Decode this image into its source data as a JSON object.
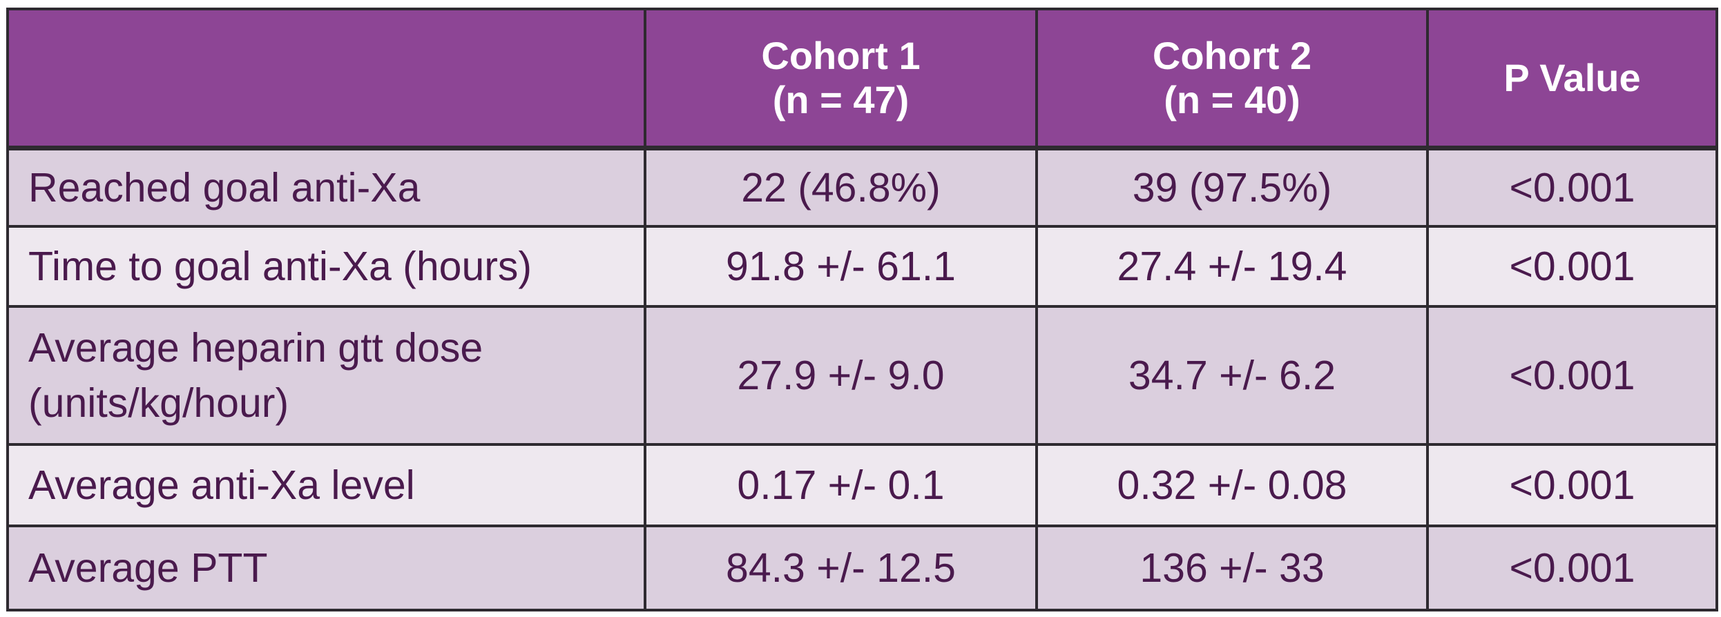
{
  "header": {
    "col0": "",
    "col1": [
      "Cohort 1",
      "(n = 47)"
    ],
    "col2": [
      "Cohort 2",
      "(n = 40)"
    ],
    "col3": "P Value"
  },
  "rows": [
    {
      "label": [
        "Reached goal anti-Xa"
      ],
      "cohort1": "22 (46.8%)",
      "cohort2": "39 (97.5%)",
      "p": "<0.001"
    },
    {
      "label": [
        "Time to goal anti-Xa (hours)"
      ],
      "cohort1": "91.8 +/- 61.1",
      "cohort2": "27.4 +/- 19.4",
      "p": "<0.001"
    },
    {
      "label": [
        "Average heparin gtt dose",
        "(units/kg/hour)"
      ],
      "cohort1": "27.9 +/- 9.0",
      "cohort2": "34.7 +/- 6.2",
      "p": "<0.001"
    },
    {
      "label": [
        "Average anti-Xa level"
      ],
      "cohort1": "0.17 +/- 0.1",
      "cohort2": "0.32 +/- 0.08",
      "p": "<0.001"
    },
    {
      "label": [
        "Average PTT"
      ],
      "cohort1": "84.3 +/- 12.5",
      "cohort2": "136 +/- 33",
      "p": "<0.001"
    }
  ],
  "colors": {
    "header_bg": "#8d4595",
    "header_text": "#ffffff",
    "row_dark": "#dbcfde",
    "row_light": "#eee8ef",
    "body_text": "#4a1a4d",
    "border": "#2e2a30"
  }
}
